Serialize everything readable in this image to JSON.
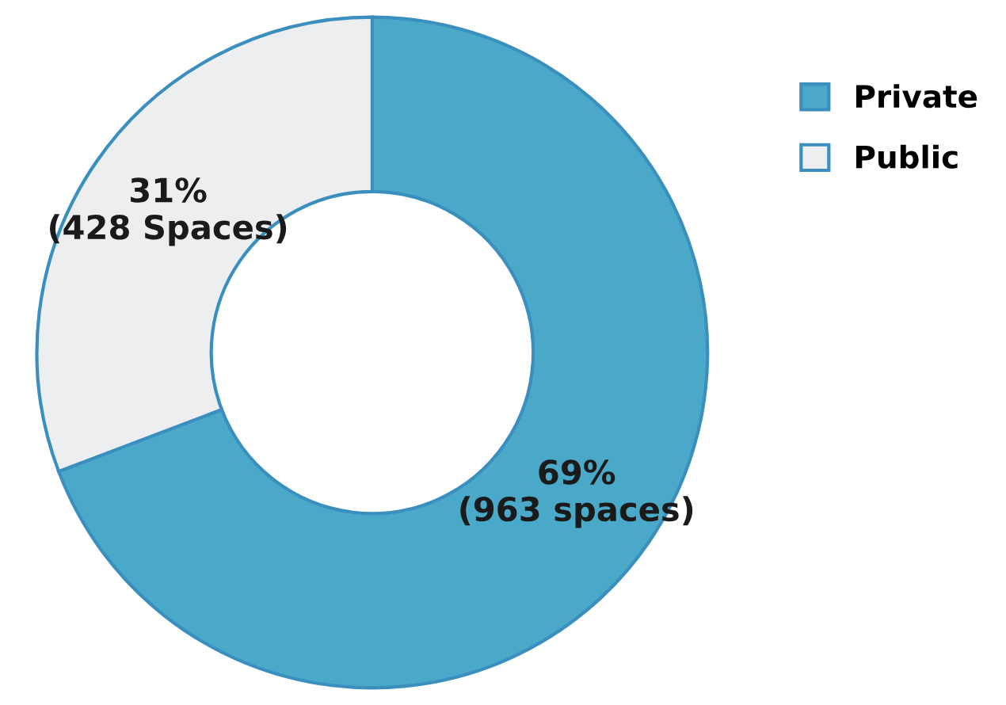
{
  "chart_data": {
    "type": "donut",
    "categories": [
      "Private",
      "Public"
    ],
    "values": [
      963,
      428
    ],
    "colors": [
      "#4aa9c9",
      "#eceef0"
    ],
    "value_labels": [
      "69%\n(963 spaces)",
      "31%\n(428 Spaces)"
    ],
    "legend": "top right"
  }
}
